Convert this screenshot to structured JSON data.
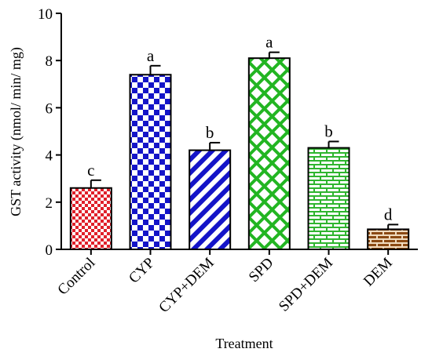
{
  "chart_data": {
    "type": "bar",
    "title": "",
    "xlabel": "Treatment",
    "ylabel": "GST activity (nmol/ min/ mg)",
    "ylim": [
      0,
      10
    ],
    "yticks": [
      "0",
      "2",
      "4",
      "6",
      "8",
      "10"
    ],
    "grid": false,
    "categories": [
      "Control",
      "CYP",
      "CYP+DEM",
      "SPD",
      "SPD+DEM",
      "DEM"
    ],
    "values": [
      2.6,
      7.4,
      4.2,
      8.1,
      4.3,
      0.85
    ],
    "errors": [
      0.33,
      0.38,
      0.32,
      0.25,
      0.27,
      0.2
    ],
    "significance": [
      "c",
      "a",
      "b",
      "a",
      "b",
      "d"
    ],
    "colors": [
      "#e0202a",
      "#1414c8",
      "#1414c8",
      "#22b522",
      "#2fb52f",
      "#8b4a14"
    ],
    "patterns": [
      "small-check",
      "large-check",
      "diagonal-stripes",
      "diamond-lattice",
      "brick",
      "brick"
    ]
  }
}
